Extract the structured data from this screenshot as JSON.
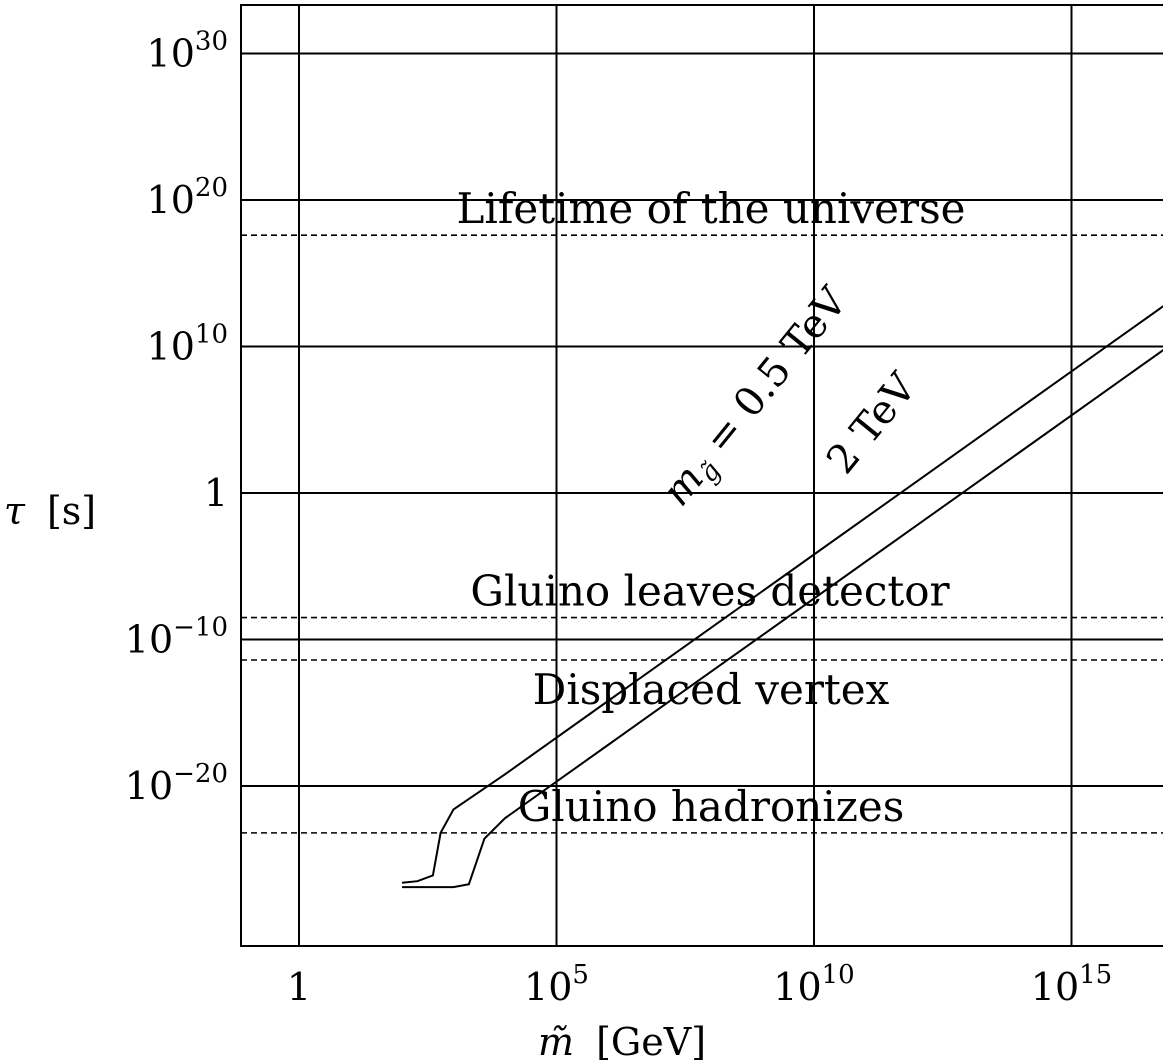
{
  "chart_data": {
    "type": "line",
    "title": "",
    "xlabel": {
      "symbol": "m̃",
      "unit": "[GeV]"
    },
    "ylabel": {
      "symbol": "τ",
      "unit": "[s]"
    },
    "xscale": "log",
    "yscale": "log",
    "xlim_log10": [
      -1.1,
      16.8
    ],
    "ylim_log10": [
      -31,
      33
    ],
    "grid": true,
    "x_ticks": [
      {
        "log10": 0,
        "base": "1",
        "exp": ""
      },
      {
        "log10": 5,
        "base": "10",
        "exp": "5"
      },
      {
        "log10": 10,
        "base": "10",
        "exp": "10"
      },
      {
        "log10": 15,
        "base": "10",
        "exp": "15"
      }
    ],
    "y_ticks": [
      {
        "log10": 30,
        "base": "10",
        "exp": "30"
      },
      {
        "log10": 20,
        "base": "10",
        "exp": "20"
      },
      {
        "log10": 10,
        "base": "10",
        "exp": "10"
      },
      {
        "log10": 0,
        "base": "1",
        "exp": ""
      },
      {
        "log10": -10,
        "base": "10",
        "exp": "−10"
      },
      {
        "log10": -20,
        "base": "10",
        "exp": "−20"
      }
    ],
    "reference_lines": [
      {
        "label": "Lifetime of the universe",
        "log10_tau": 17.6
      },
      {
        "label": "Gluino leaves detector",
        "log10_tau": -8.5
      },
      {
        "label": "Displaced vertex",
        "log10_tau": -11.4
      },
      {
        "label": "Gluino hadronizes",
        "log10_tau": -23.2
      }
    ],
    "series": [
      {
        "points_log10": [
          [
            2,
            -26.6
          ],
          [
            2.3,
            -26.5
          ],
          [
            2.6,
            -26.1
          ],
          [
            2.75,
            -23.2
          ],
          [
            3,
            -21.6
          ],
          [
            4,
            -19.2
          ],
          [
            6,
            -14.2
          ],
          [
            8,
            -9.2
          ],
          [
            10,
            -4.2
          ],
          [
            12,
            0.8
          ],
          [
            14,
            5.8
          ],
          [
            16,
            10.8
          ],
          [
            16,
            10.8
          ],
          [
            16.3,
            11.55
          ],
          [
            16.8,
            12.8
          ]
        ],
        "annotation": {
          "math": "m",
          "sub": "g̃",
          "rest": " = 0.5 TeV"
        }
      },
      {
        "points_log10": [
          [
            2,
            -26.9
          ],
          [
            3,
            -26.9
          ],
          [
            3.3,
            -26.7
          ],
          [
            3.6,
            -23.6
          ],
          [
            4,
            -22.2
          ],
          [
            6,
            -17.2
          ],
          [
            8,
            -12.2
          ],
          [
            10,
            -7.2
          ],
          [
            12,
            -2.2
          ],
          [
            14,
            2.8
          ],
          [
            16,
            7.8
          ],
          [
            16.8,
            9.8
          ]
        ],
        "annotation": {
          "math": "",
          "sub": "",
          "rest": "2 TeV"
        }
      }
    ]
  }
}
